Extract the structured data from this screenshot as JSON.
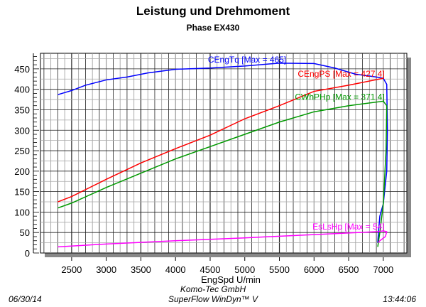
{
  "chart_data": {
    "type": "line",
    "title": "Leistung und Drehmoment",
    "subtitle": "Phase EX430",
    "xlabel": "EngSpd U/min",
    "ylabel": "",
    "xlim": [
      2050,
      7340
    ],
    "ylim": [
      0,
      488
    ],
    "xticks": [
      2500,
      3000,
      3500,
      4000,
      4500,
      5000,
      5500,
      6000,
      6500,
      7000
    ],
    "yticks": [
      0,
      50,
      100,
      150,
      200,
      250,
      300,
      350,
      400,
      450
    ],
    "grid": true,
    "series": [
      {
        "name": "CEngTq [Max = 465]",
        "color": "#0000ff",
        "points": [
          [
            2300,
            387
          ],
          [
            2500,
            397
          ],
          [
            2700,
            410
          ],
          [
            3000,
            423
          ],
          [
            3300,
            430
          ],
          [
            3600,
            440
          ],
          [
            4000,
            449
          ],
          [
            4500,
            452
          ],
          [
            5000,
            457
          ],
          [
            5500,
            464
          ],
          [
            6000,
            463
          ],
          [
            6300,
            452
          ],
          [
            6600,
            437
          ],
          [
            6900,
            430
          ],
          [
            7000,
            427
          ],
          [
            7050,
            412
          ],
          [
            7060,
            300
          ],
          [
            7050,
            200
          ],
          [
            7000,
            120
          ],
          [
            6950,
            90
          ],
          [
            6930,
            50
          ],
          [
            6920,
            25
          ]
        ]
      },
      {
        "name": "CEngPS [Max = 427.4]",
        "color": "#ff0000",
        "points": [
          [
            2300,
            125
          ],
          [
            2500,
            138
          ],
          [
            3000,
            180
          ],
          [
            3500,
            220
          ],
          [
            4000,
            255
          ],
          [
            4500,
            288
          ],
          [
            5000,
            328
          ],
          [
            5500,
            360
          ],
          [
            6000,
            395
          ],
          [
            6500,
            410
          ],
          [
            7000,
            427
          ]
        ]
      },
      {
        "name": "CWhPHp [Max = 371.4]",
        "color": "#009900",
        "points": [
          [
            2300,
            110
          ],
          [
            2500,
            122
          ],
          [
            3000,
            160
          ],
          [
            3500,
            195
          ],
          [
            4000,
            230
          ],
          [
            4500,
            260
          ],
          [
            5000,
            290
          ],
          [
            5500,
            320
          ],
          [
            6000,
            345
          ],
          [
            6500,
            360
          ],
          [
            7000,
            371
          ],
          [
            7050,
            360
          ],
          [
            7040,
            250
          ],
          [
            7000,
            120
          ],
          [
            6950,
            50
          ],
          [
            6920,
            15
          ]
        ]
      },
      {
        "name": "EsLsHp [Max = 54]",
        "color": "#ff00ff",
        "points": [
          [
            2300,
            15
          ],
          [
            3000,
            22
          ],
          [
            4000,
            30
          ],
          [
            5000,
            37
          ],
          [
            6000,
            45
          ],
          [
            6900,
            52
          ],
          [
            7000,
            54
          ],
          [
            7050,
            52
          ],
          [
            7030,
            40
          ],
          [
            6950,
            30
          ],
          [
            6930,
            25
          ]
        ]
      }
    ]
  },
  "footer": {
    "date": "06/30/14",
    "company": "Komo-Tec GmbH",
    "software": "SuperFlow WinDyn™ V",
    "time": "13:44:06"
  }
}
